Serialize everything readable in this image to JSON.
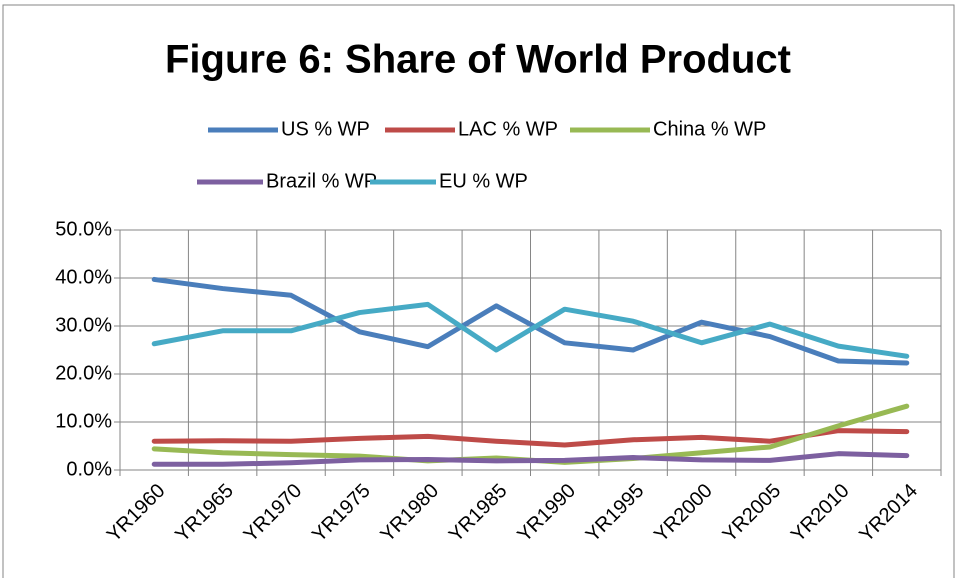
{
  "chart_data": {
    "type": "line",
    "title": "Figure 6: Share of World Product",
    "categories": [
      "YR1960",
      "YR1965",
      "YR1970",
      "YR1975",
      "YR1980",
      "YR1985",
      "YR1990",
      "YR1995",
      "YR2000",
      "YR2005",
      "YR2010",
      "YR2014"
    ],
    "series": [
      {
        "name": "US % WP",
        "color": "#4a7ebb",
        "values": [
          39.7,
          37.8,
          36.4,
          28.8,
          25.7,
          34.2,
          26.5,
          25.0,
          30.8,
          27.8,
          22.7,
          22.3
        ]
      },
      {
        "name": "LAC % WP",
        "color": "#be4b48",
        "values": [
          6.0,
          6.1,
          6.0,
          6.6,
          7.0,
          6.0,
          5.2,
          6.3,
          6.8,
          6.0,
          8.2,
          8.0
        ]
      },
      {
        "name": "China % WP",
        "color": "#98b954",
        "values": [
          4.4,
          3.6,
          3.2,
          2.9,
          1.9,
          2.5,
          1.6,
          2.4,
          3.6,
          4.8,
          9.2,
          13.3
        ]
      },
      {
        "name": "Brazil % WP",
        "color": "#7d60a0",
        "values": [
          1.2,
          1.2,
          1.5,
          2.1,
          2.2,
          1.9,
          2.0,
          2.6,
          2.1,
          2.0,
          3.4,
          3.0
        ]
      },
      {
        "name": "EU % WP",
        "color": "#46aac5",
        "values": [
          26.3,
          29.0,
          29.0,
          32.8,
          34.5,
          25.0,
          33.5,
          31.0,
          26.5,
          30.4,
          25.8,
          23.7
        ]
      }
    ],
    "ylim": [
      0,
      50
    ],
    "yticks": [
      {
        "value": 0,
        "label": "0.0%"
      },
      {
        "value": 10,
        "label": "10.0%"
      },
      {
        "value": 20,
        "label": "20.0%"
      },
      {
        "value": 30,
        "label": "30.0%"
      },
      {
        "value": 40,
        "label": "40.0%"
      },
      {
        "value": 50,
        "label": "50.0%"
      }
    ],
    "grid": true,
    "legend": "top"
  }
}
